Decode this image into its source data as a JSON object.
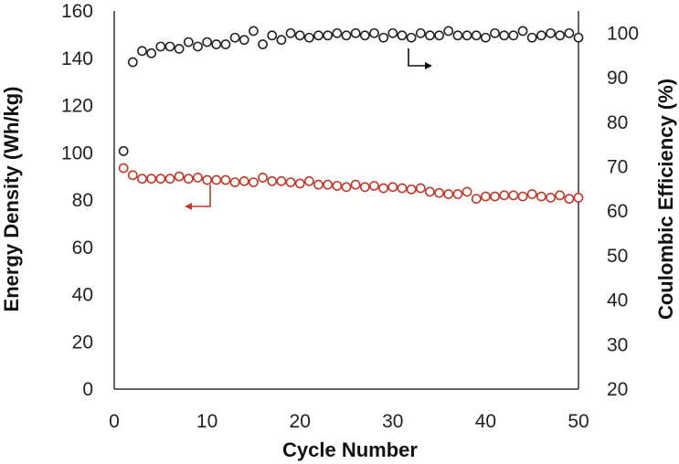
{
  "chart_data": {
    "type": "scatter",
    "title": "",
    "xlabel": "Cycle Number",
    "ylabel": "Energy Density (Wh/kg)",
    "y2label": "Coulombic Efficiency (%)",
    "xlim": [
      0,
      50
    ],
    "ylim": [
      0,
      160
    ],
    "y2lim": [
      20,
      105
    ],
    "x_ticks": [
      0,
      10,
      20,
      30,
      40,
      50
    ],
    "y_ticks": [
      0,
      20,
      40,
      60,
      80,
      100,
      120,
      140,
      160
    ],
    "y2_ticks": [
      20,
      30,
      40,
      50,
      60,
      70,
      80,
      90,
      100
    ],
    "grid": false,
    "legend": "none",
    "series": [
      {
        "axis": "left",
        "color": "#c0392b",
        "x": [
          1,
          2,
          3,
          4,
          5,
          6,
          7,
          8,
          9,
          10,
          11,
          12,
          13,
          14,
          15,
          16,
          17,
          18,
          19,
          20,
          21,
          22,
          23,
          24,
          25,
          26,
          27,
          28,
          29,
          30,
          31,
          32,
          33,
          34,
          35,
          36,
          37,
          38,
          39,
          40,
          41,
          42,
          43,
          44,
          45,
          46,
          47,
          48,
          49,
          50
        ],
        "values": [
          93.5,
          90.5,
          89,
          89,
          89,
          89,
          90,
          89,
          89.5,
          88.5,
          88.5,
          88.5,
          87.5,
          88,
          87.5,
          89.5,
          88,
          88,
          87.5,
          87,
          88,
          86.5,
          86.5,
          86,
          85.5,
          86.5,
          85.5,
          86,
          85,
          85.5,
          85,
          84.5,
          85,
          83.5,
          83,
          82.5,
          82.5,
          83.5,
          80.5,
          81.5,
          81.5,
          82,
          82,
          81.5,
          82.5,
          81.5,
          81,
          82,
          80.5,
          81
        ]
      },
      {
        "axis": "right",
        "color": "#222222",
        "x": [
          1,
          2,
          3,
          4,
          5,
          6,
          7,
          8,
          9,
          10,
          11,
          12,
          13,
          14,
          15,
          16,
          17,
          18,
          19,
          20,
          21,
          22,
          23,
          24,
          25,
          26,
          27,
          28,
          29,
          30,
          31,
          32,
          33,
          34,
          35,
          36,
          37,
          38,
          39,
          40,
          41,
          42,
          43,
          44,
          45,
          46,
          47,
          48,
          49,
          50
        ],
        "values": [
          73.5,
          93.5,
          96,
          95.5,
          97,
          97,
          96.5,
          98,
          97,
          98,
          97.5,
          97.5,
          99,
          98.5,
          100.5,
          97.5,
          99.5,
          98.5,
          100,
          99.5,
          99,
          99.5,
          99.5,
          100,
          99.5,
          100,
          99.5,
          100,
          99,
          100,
          99.5,
          99,
          100,
          99.5,
          99.5,
          100.5,
          99.5,
          99.5,
          99.5,
          99,
          100,
          99.5,
          99.5,
          100.5,
          99,
          99.5,
          100,
          99.5,
          100,
          99
        ]
      }
    ]
  }
}
